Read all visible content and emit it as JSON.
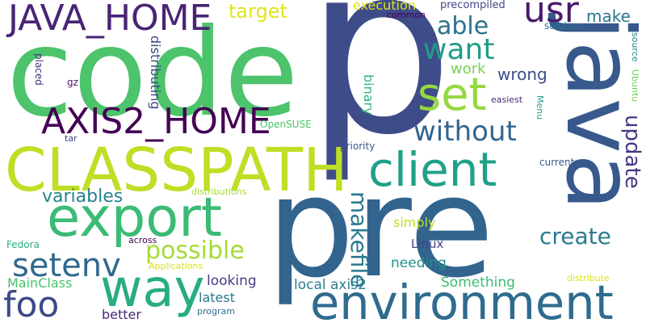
{
  "words": [
    {
      "text": "p",
      "color": "#3e4c8a"
    },
    {
      "text": "code",
      "color": "#4dc36b"
    },
    {
      "text": "pre",
      "color": "#32648e"
    },
    {
      "text": "java",
      "color": "#38598c"
    },
    {
      "text": "CLASSPATH",
      "color": "#c0de25"
    },
    {
      "text": "export",
      "color": "#3bbb75"
    },
    {
      "text": "client",
      "color": "#1fa188"
    },
    {
      "text": "environment",
      "color": "#2f6b8e"
    },
    {
      "text": "way",
      "color": "#27ad81"
    },
    {
      "text": "JAVA_HOME",
      "color": "#482475"
    },
    {
      "text": "AXIS2_HOME",
      "color": "#440154"
    },
    {
      "text": "set",
      "color": "#95d840"
    },
    {
      "text": "setenv",
      "color": "#30698e"
    },
    {
      "text": "foo",
      "color": "#3e4989"
    },
    {
      "text": "usr",
      "color": "#481a6c"
    },
    {
      "text": "want",
      "color": "#1f9e89"
    },
    {
      "text": "without",
      "color": "#32658e"
    },
    {
      "text": "able",
      "color": "#2c728e"
    },
    {
      "text": "possible",
      "color": "#a5db36"
    },
    {
      "text": "update",
      "color": "#443983"
    },
    {
      "text": "makefile",
      "color": "#29798e"
    },
    {
      "text": "create",
      "color": "#287c8e"
    },
    {
      "text": "variables",
      "color": "#25838e"
    },
    {
      "text": "target",
      "color": "#e2e418"
    },
    {
      "text": "make",
      "color": "#2a768e"
    },
    {
      "text": "work",
      "color": "#7ad151"
    },
    {
      "text": "wrong",
      "color": "#3d4e8a"
    },
    {
      "text": "execution",
      "color": "#dde318"
    },
    {
      "text": "local axis2",
      "color": "#287d8e"
    },
    {
      "text": "needing",
      "color": "#20928c"
    },
    {
      "text": "Something",
      "color": "#3bbb75"
    },
    {
      "text": "looking",
      "color": "#433e85"
    },
    {
      "text": "latest",
      "color": "#2a788e"
    },
    {
      "text": "better",
      "color": "#482878"
    },
    {
      "text": "simply",
      "color": "#bddf26"
    },
    {
      "text": "Linux",
      "color": "#414487"
    },
    {
      "text": "MainClass",
      "color": "#4ac16d"
    },
    {
      "text": "distributing",
      "color": "#3e4989"
    },
    {
      "text": "binary",
      "color": "#2fb47c"
    },
    {
      "text": "precompiled",
      "color": "#3f4889"
    },
    {
      "text": "common",
      "color": "#440154"
    },
    {
      "text": "solution",
      "color": "#2a788e"
    },
    {
      "text": "source",
      "color": "#26828e"
    },
    {
      "text": "Ubuntu",
      "color": "#6ece58"
    },
    {
      "text": "Menu",
      "color": "#1f9e89"
    },
    {
      "text": "easiest",
      "color": "#472c7a"
    },
    {
      "text": "OpenSUSE",
      "color": "#4ac16d"
    },
    {
      "text": "priority",
      "color": "#3b528b"
    },
    {
      "text": "current",
      "color": "#355f8d"
    },
    {
      "text": "distributions",
      "color": "#a8db34"
    },
    {
      "text": "Fedora",
      "color": "#2ab07f"
    },
    {
      "text": "across",
      "color": "#440154"
    },
    {
      "text": "Applications",
      "color": "#d8e219"
    },
    {
      "text": "program",
      "color": "#2e6f8e"
    },
    {
      "text": "distribute",
      "color": "#dde318"
    },
    {
      "text": "placed",
      "color": "#472d7b"
    },
    {
      "text": "gz",
      "color": "#471164"
    },
    {
      "text": "tar",
      "color": "#3f4788"
    }
  ]
}
